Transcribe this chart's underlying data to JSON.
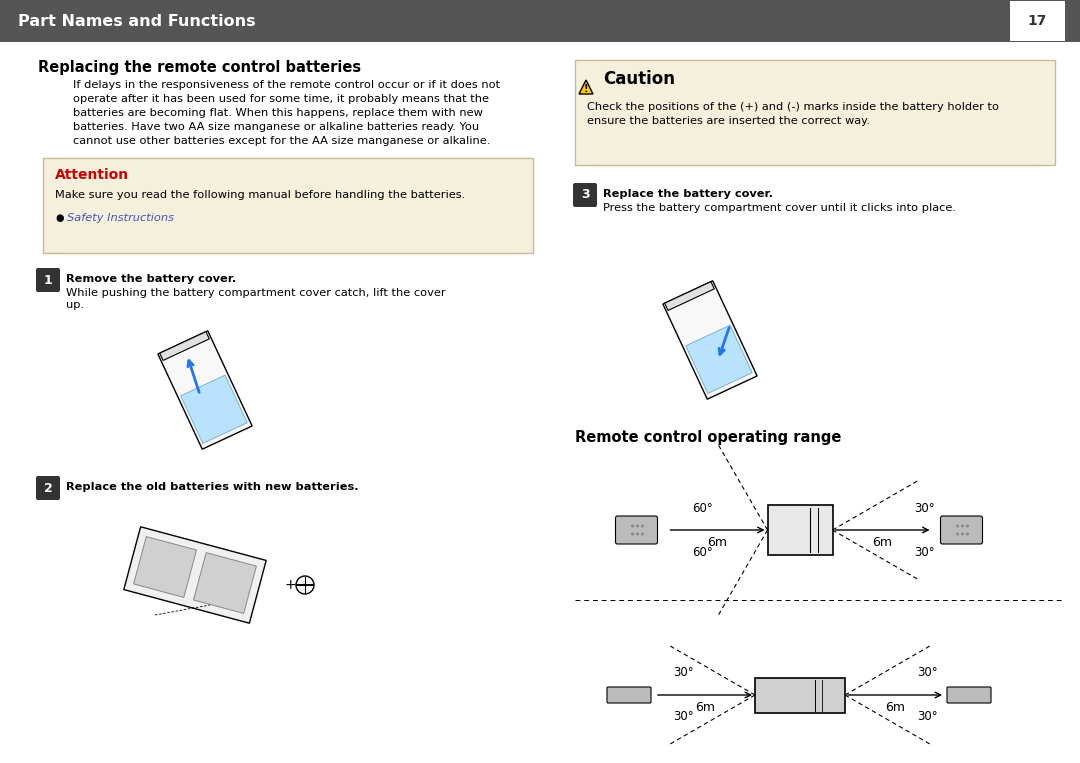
{
  "bg_color": "#ffffff",
  "header_bg": "#555555",
  "header_text": "Part Names and Functions",
  "header_page": "17",
  "header_text_color": "#ffffff",
  "section1_title": "Replacing the remote control batteries",
  "para1": "If delays in the responsiveness of the remote control occur or if it does not\noperate after it has been used for some time, it probably means that the\nbatteries are becoming flat. When this happens, replace them with new\nbatteries. Have two AA size manganese or alkaline batteries ready. You\ncannot use other batteries except for the AA size manganese or alkaline.",
  "attention_bg": "#f5f0dc",
  "attention_border": "#c8b89a",
  "attention_title": "Attention",
  "attention_title_color": "#cc0000",
  "attention_text": "Make sure you read the following manual before handling the batteries.",
  "attention_link": "Safety Instructions",
  "attention_link_color": "#4455bb",
  "step1_text": "Remove the battery cover.",
  "step1_sub": "While pushing the battery compartment cover catch, lift the cover\nup.",
  "step2_text": "Replace the old batteries with new batteries.",
  "step3_text": "Replace the battery cover.",
  "step3_sub": "Press the battery compartment cover until it clicks into place.",
  "caution_bg": "#f5f0dc",
  "caution_border": "#c8b89a",
  "caution_title": "Caution",
  "caution_text1": "Check the positions of the (+) and (-) marks inside the battery holder to",
  "caution_text2": "ensure the batteries are inserted the correct way.",
  "section2_title": "Remote control operating range",
  "step_bg": "#333333",
  "step_text_color": "#ffffff",
  "body_font_size": 8.2,
  "title_font_size": 10.5,
  "header_font_size": 11.5
}
